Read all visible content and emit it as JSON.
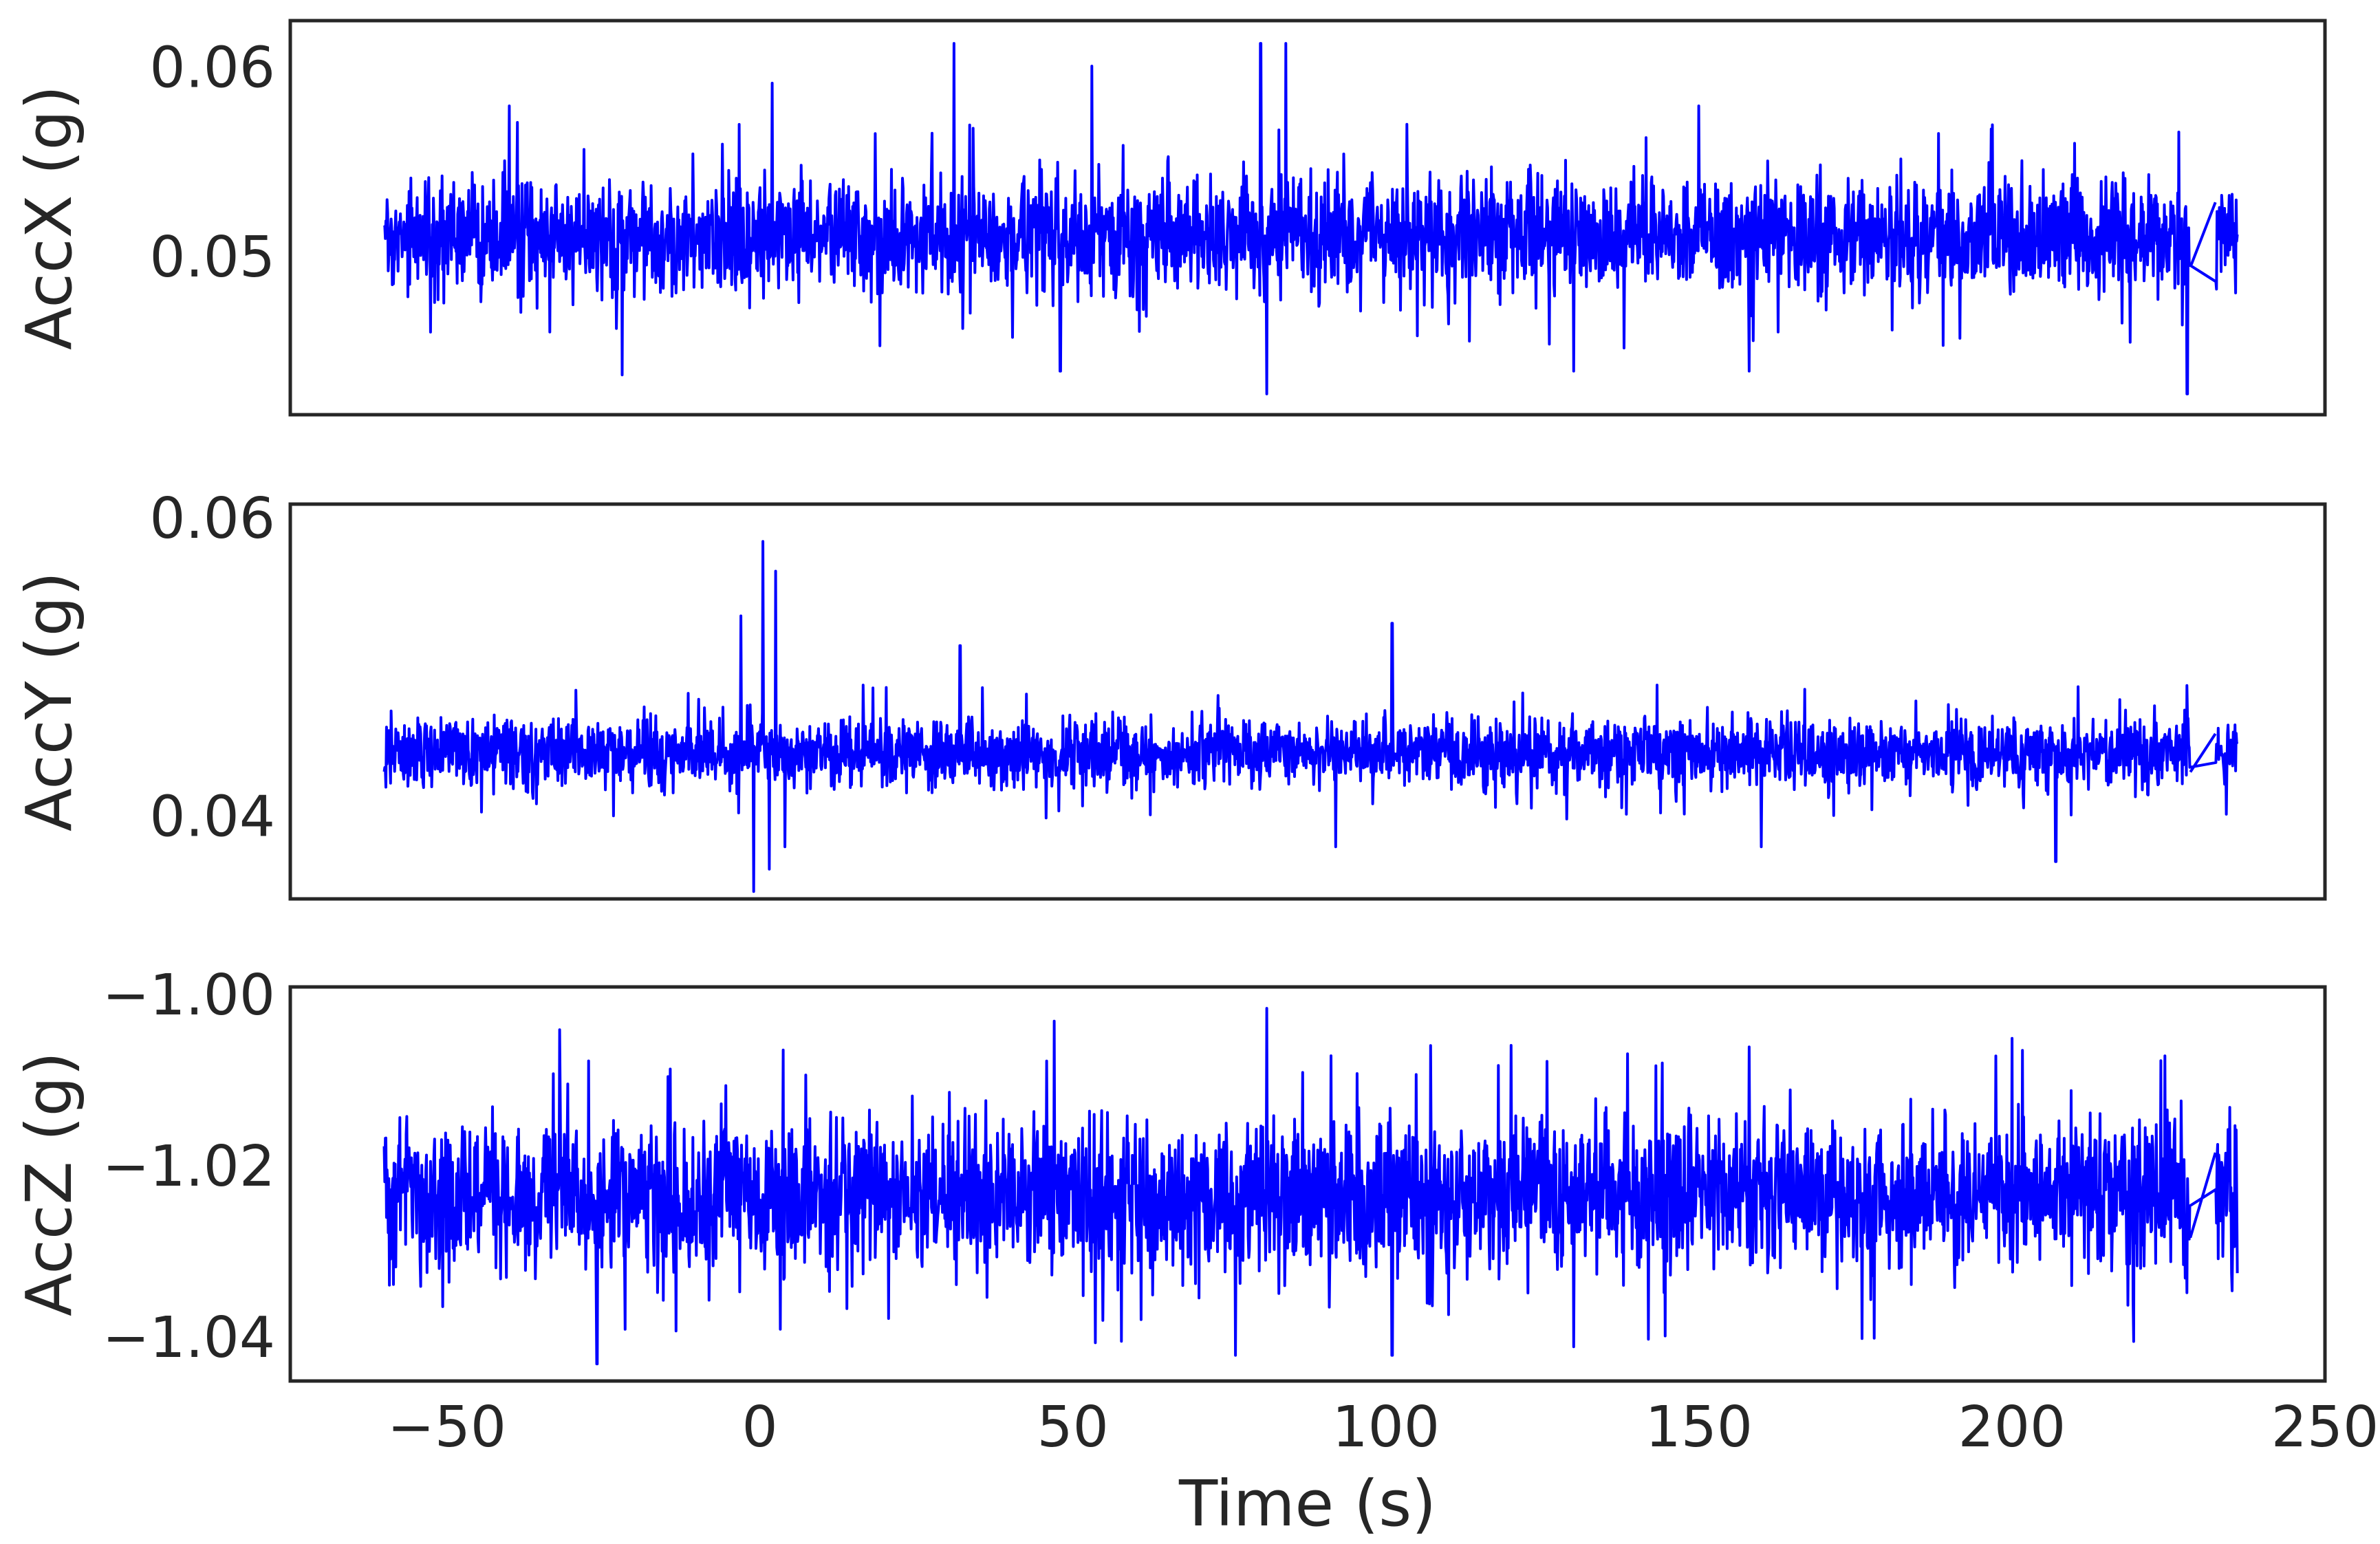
{
  "chart_data": [
    {
      "type": "line",
      "ylabel": "AccX (g)",
      "xlabel": "",
      "xlim": [
        -75,
        250
      ],
      "ylim": [
        0.0417,
        0.0625
      ],
      "yticks": [
        0.05,
        0.06
      ],
      "ytick_labels": [
        "0.05",
        "0.06"
      ],
      "x_tick_labels_visible": false,
      "color": "#0000ff",
      "series": [
        {
          "x_range": [
            -60,
            236
          ],
          "gap": [
            228.5,
            232.5
          ],
          "baseline": 0.0512,
          "band": [
            0.0478,
            0.0554
          ],
          "spikes_high": [
            {
              "x": 31,
              "y": 0.0613
            },
            {
              "x": 80,
              "y": 0.0613
            },
            {
              "x": 84,
              "y": 0.0613
            },
            {
              "x": 53,
              "y": 0.0601
            },
            {
              "x": 2,
              "y": 0.0592
            },
            {
              "x": -40,
              "y": 0.058
            },
            {
              "x": 150,
              "y": 0.058
            }
          ],
          "spikes_low": [
            {
              "x": 81,
              "y": 0.0428
            },
            {
              "x": 228,
              "y": 0.0428
            },
            {
              "x": -22,
              "y": 0.0438
            },
            {
              "x": 48,
              "y": 0.044
            },
            {
              "x": 130,
              "y": 0.044
            },
            {
              "x": 158,
              "y": 0.044
            }
          ]
        }
      ]
    },
    {
      "type": "line",
      "ylabel": "AccY (g)",
      "xlabel": "",
      "xlim": [
        -75,
        250
      ],
      "ylim": [
        0.0345,
        0.061
      ],
      "yticks": [
        0.04,
        0.06
      ],
      "ytick_labels": [
        "0.04",
        "0.06"
      ],
      "x_tick_labels_visible": false,
      "color": "#0000ff",
      "series": [
        {
          "x_range": [
            -60,
            236
          ],
          "gap": [
            228.5,
            232.5
          ],
          "baseline": 0.0443,
          "band": [
            0.0415,
            0.0472
          ],
          "spikes_high": [
            {
              "x": -1,
              "y": 0.0595
            },
            {
              "x": 0.5,
              "y": 0.0585
            },
            {
              "x": 2.5,
              "y": 0.0565
            },
            {
              "x": 4,
              "y": 0.055
            },
            {
              "x": -3,
              "y": 0.0535
            },
            {
              "x": 101,
              "y": 0.053
            },
            {
              "x": 32,
              "y": 0.0515
            }
          ],
          "spikes_low": [
            {
              "x": -1,
              "y": 0.035
            },
            {
              "x": 1.5,
              "y": 0.0365
            },
            {
              "x": 4,
              "y": 0.038
            },
            {
              "x": 207,
              "y": 0.037
            },
            {
              "x": 92,
              "y": 0.038
            },
            {
              "x": 160,
              "y": 0.038
            }
          ]
        }
      ]
    },
    {
      "type": "line",
      "ylabel": "AccZ (g)",
      "xlabel": "Time (s)",
      "xlim": [
        -75,
        250
      ],
      "ylim": [
        -1.045,
        -0.999
      ],
      "yticks": [
        -1.04,
        -1.02,
        -1.0
      ],
      "ytick_labels": [
        "−1.04",
        "−1.02",
        "−1.00"
      ],
      "xticks": [
        -50,
        0,
        50,
        100,
        150,
        200,
        250
      ],
      "xtick_labels": [
        "−50",
        "0",
        "50",
        "100",
        "150",
        "200",
        "250"
      ],
      "x_tick_labels_visible": true,
      "color": "#0000ff",
      "series": [
        {
          "x_range": [
            -60,
            236
          ],
          "gap": [
            228.5,
            232.5
          ],
          "baseline": -1.0233,
          "band": [
            -1.034,
            -1.012
          ],
          "spikes_high": [
            {
              "x": 81,
              "y": -1.0015
            },
            {
              "x": 47,
              "y": -1.003
            },
            {
              "x": -32,
              "y": -1.004
            },
            {
              "x": 200,
              "y": -1.005
            },
            {
              "x": 158,
              "y": -1.006
            }
          ],
          "spikes_low": [
            {
              "x": -26,
              "y": -1.043
            },
            {
              "x": 76,
              "y": -1.042
            },
            {
              "x": 101,
              "y": -1.042
            },
            {
              "x": 130,
              "y": -1.041
            },
            {
              "x": 178,
              "y": -1.04
            }
          ]
        }
      ]
    }
  ]
}
